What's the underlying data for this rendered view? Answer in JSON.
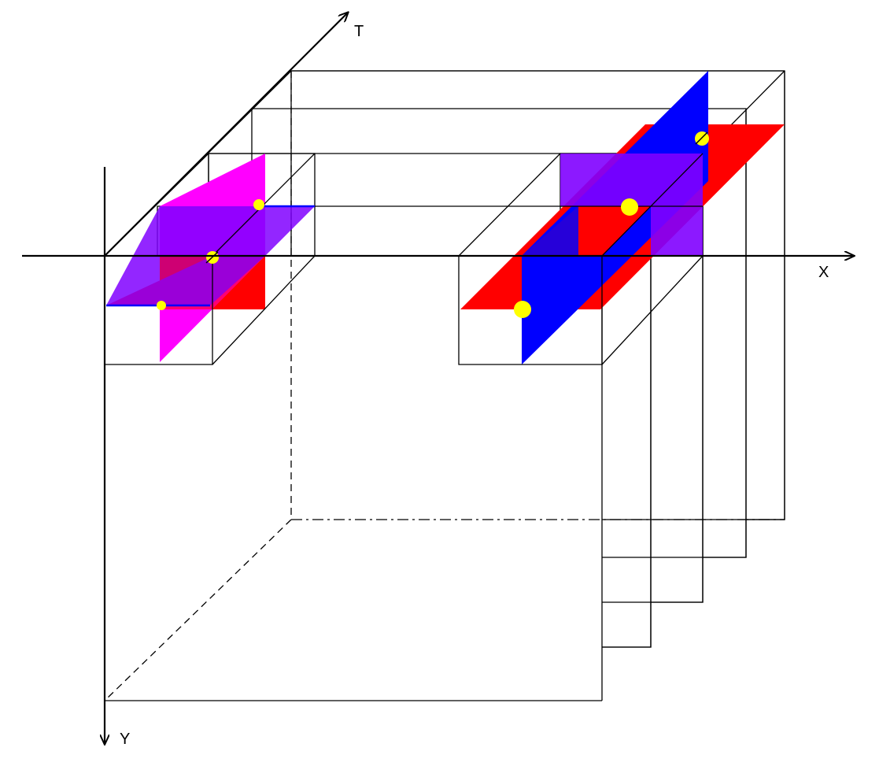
{
  "axes": {
    "x_label": "X",
    "y_label": "Y",
    "t_label": "T"
  },
  "colors": {
    "plane_xy": "#ff0000",
    "plane_yt": "#ff00ff",
    "plane_yt_right": "#0000ff",
    "plane_xt": "#8000ff",
    "pixel_marker": "#ffff00",
    "outline": "#000000"
  },
  "structure": {
    "video_frames": 5,
    "neighborhood_blocks": 2,
    "markers_left_block": 3,
    "markers_right_block": 3
  }
}
